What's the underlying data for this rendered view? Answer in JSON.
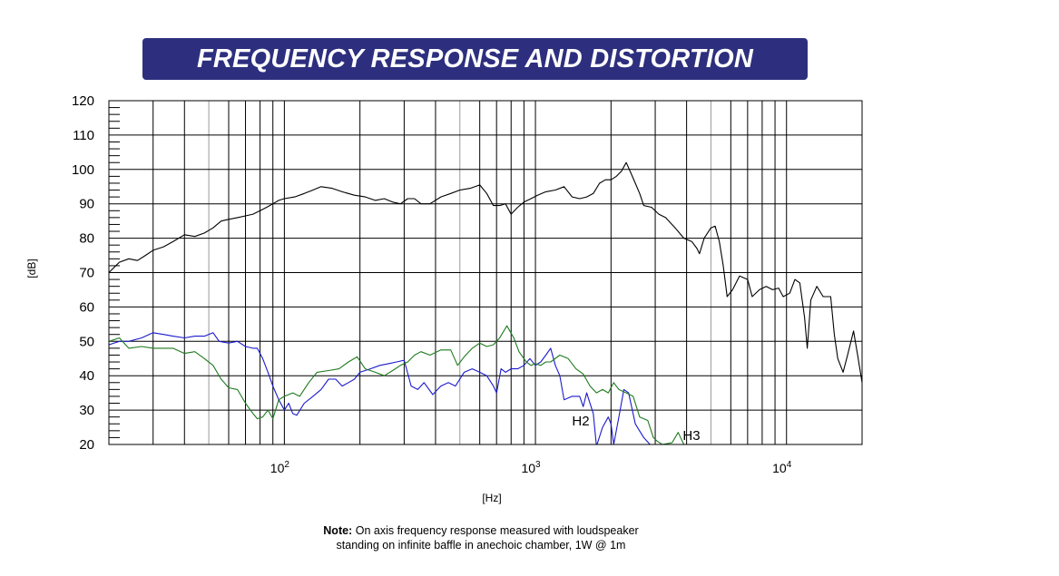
{
  "title": "FREQUENCY RESPONSE AND DISTORTION",
  "note": {
    "label": "Note:",
    "line1": "On axis frequency response measured with loudspeaker",
    "line2": "standing on infinite baffle in anechoic chamber, 1W @ 1m"
  },
  "colors": {
    "banner": "#2d2f7e",
    "response": "#000000",
    "h2": "#1a1acc",
    "h3": "#1f7a1f"
  },
  "chart_data": {
    "type": "line",
    "xscale": "log",
    "xlim": [
      20,
      20000
    ],
    "ylim": [
      20,
      120
    ],
    "xlabel": "[Hz]",
    "ylabel": "[dB]",
    "grid": true,
    "yticks": [
      120,
      110,
      100,
      90,
      80,
      70,
      60,
      50,
      40,
      30,
      20
    ],
    "xticks": [
      {
        "value": 100,
        "base": "10",
        "exp": "2"
      },
      {
        "value": 1000,
        "base": "10",
        "exp": "3"
      },
      {
        "value": 10000,
        "base": "10",
        "exp": "4"
      }
    ],
    "series": [
      {
        "key": "response",
        "color": "#000000",
        "points": [
          [
            20,
            70
          ],
          [
            22,
            73
          ],
          [
            24,
            74
          ],
          [
            26,
            73.5
          ],
          [
            28,
            75
          ],
          [
            30,
            76.5
          ],
          [
            33,
            77.5
          ],
          [
            36,
            79
          ],
          [
            40,
            81
          ],
          [
            44,
            80.5
          ],
          [
            48,
            81.5
          ],
          [
            52,
            83
          ],
          [
            56,
            85
          ],
          [
            60,
            85.5
          ],
          [
            65,
            86
          ],
          [
            70,
            86.5
          ],
          [
            75,
            87
          ],
          [
            80,
            88
          ],
          [
            85,
            89
          ],
          [
            90,
            90
          ],
          [
            95,
            91
          ],
          [
            100,
            91.5
          ],
          [
            110,
            92
          ],
          [
            120,
            93
          ],
          [
            130,
            94
          ],
          [
            140,
            95
          ],
          [
            155,
            94.5
          ],
          [
            170,
            93.5
          ],
          [
            190,
            92.5
          ],
          [
            210,
            92
          ],
          [
            230,
            91
          ],
          [
            250,
            91.5
          ],
          [
            270,
            90.5
          ],
          [
            290,
            90
          ],
          [
            310,
            91.5
          ],
          [
            330,
            91.5
          ],
          [
            350,
            90
          ],
          [
            380,
            90
          ],
          [
            420,
            92
          ],
          [
            460,
            93
          ],
          [
            500,
            94
          ],
          [
            550,
            94.5
          ],
          [
            600,
            95.5
          ],
          [
            640,
            93
          ],
          [
            680,
            89.5
          ],
          [
            720,
            89.5
          ],
          [
            760,
            90
          ],
          [
            800,
            87
          ],
          [
            850,
            89
          ],
          [
            900,
            90.5
          ],
          [
            960,
            91.5
          ],
          [
            1020,
            92.5
          ],
          [
            1100,
            93.5
          ],
          [
            1200,
            94
          ],
          [
            1300,
            95
          ],
          [
            1400,
            92
          ],
          [
            1500,
            91.5
          ],
          [
            1600,
            92
          ],
          [
            1700,
            93
          ],
          [
            1800,
            96
          ],
          [
            1900,
            97
          ],
          [
            2000,
            97
          ],
          [
            2100,
            98
          ],
          [
            2200,
            99.5
          ],
          [
            2300,
            102
          ],
          [
            2400,
            99
          ],
          [
            2500,
            96
          ],
          [
            2600,
            93
          ],
          [
            2700,
            89.5
          ],
          [
            2900,
            89
          ],
          [
            3100,
            87
          ],
          [
            3300,
            86
          ],
          [
            3600,
            83
          ],
          [
            3900,
            80
          ],
          [
            4200,
            79
          ],
          [
            4400,
            77
          ],
          [
            4500,
            75.5
          ],
          [
            4700,
            80
          ],
          [
            5000,
            83
          ],
          [
            5200,
            83.5
          ],
          [
            5400,
            79
          ],
          [
            5600,
            72
          ],
          [
            5800,
            63
          ],
          [
            6100,
            65
          ],
          [
            6500,
            69
          ],
          [
            7000,
            68
          ],
          [
            7300,
            63
          ],
          [
            7800,
            65
          ],
          [
            8300,
            66
          ],
          [
            8800,
            65
          ],
          [
            9300,
            65.5
          ],
          [
            9700,
            63
          ],
          [
            10300,
            64
          ],
          [
            10800,
            68
          ],
          [
            11300,
            67
          ],
          [
            11800,
            57
          ],
          [
            12100,
            48
          ],
          [
            12500,
            62
          ],
          [
            13200,
            66
          ],
          [
            14000,
            63
          ],
          [
            15000,
            63
          ],
          [
            15500,
            52
          ],
          [
            16000,
            45
          ],
          [
            16800,
            41
          ],
          [
            17500,
            46
          ],
          [
            18500,
            53
          ],
          [
            19200,
            46
          ],
          [
            20000,
            38
          ]
        ]
      },
      {
        "key": "h2",
        "color": "#1a1acc",
        "label": "H2",
        "points": [
          [
            20,
            49
          ],
          [
            22,
            50
          ],
          [
            24,
            50
          ],
          [
            27,
            51
          ],
          [
            30,
            52.5
          ],
          [
            33,
            52
          ],
          [
            36,
            51.5
          ],
          [
            40,
            51
          ],
          [
            44,
            51.5
          ],
          [
            48,
            51.5
          ],
          [
            52,
            52.5
          ],
          [
            55,
            50
          ],
          [
            60,
            49.5
          ],
          [
            65,
            50
          ],
          [
            70,
            48.5
          ],
          [
            75,
            48
          ],
          [
            78,
            48
          ],
          [
            82,
            45
          ],
          [
            86,
            41
          ],
          [
            90,
            37
          ],
          [
            95,
            33
          ],
          [
            100,
            30
          ],
          [
            104,
            32
          ],
          [
            108,
            29
          ],
          [
            112,
            28.5
          ],
          [
            120,
            32
          ],
          [
            130,
            34
          ],
          [
            140,
            36
          ],
          [
            150,
            39
          ],
          [
            160,
            39
          ],
          [
            170,
            37
          ],
          [
            180,
            38
          ],
          [
            190,
            39
          ],
          [
            200,
            41
          ],
          [
            220,
            42
          ],
          [
            240,
            43
          ],
          [
            260,
            43.5
          ],
          [
            280,
            44
          ],
          [
            300,
            44.5
          ],
          [
            320,
            37
          ],
          [
            340,
            36
          ],
          [
            360,
            38
          ],
          [
            390,
            34.5
          ],
          [
            420,
            37
          ],
          [
            450,
            38
          ],
          [
            480,
            37
          ],
          [
            520,
            41
          ],
          [
            560,
            42
          ],
          [
            600,
            41
          ],
          [
            640,
            40
          ],
          [
            680,
            37
          ],
          [
            700,
            35
          ],
          [
            730,
            42
          ],
          [
            760,
            41
          ],
          [
            800,
            42
          ],
          [
            850,
            42
          ],
          [
            900,
            43
          ],
          [
            950,
            45
          ],
          [
            1000,
            43
          ],
          [
            1050,
            44
          ],
          [
            1100,
            46
          ],
          [
            1150,
            48
          ],
          [
            1200,
            43
          ],
          [
            1250,
            40
          ],
          [
            1300,
            33
          ],
          [
            1400,
            34
          ],
          [
            1500,
            34
          ],
          [
            1550,
            31
          ],
          [
            1600,
            35
          ],
          [
            1700,
            29
          ],
          [
            1750,
            19.5
          ],
          [
            1850,
            25
          ],
          [
            1950,
            28
          ],
          [
            2000,
            26
          ],
          [
            2050,
            20
          ],
          [
            2150,
            28
          ],
          [
            2250,
            36
          ],
          [
            2350,
            35
          ],
          [
            2500,
            26
          ],
          [
            2700,
            22
          ],
          [
            2900,
            19.5
          ]
        ]
      },
      {
        "key": "h3",
        "color": "#1f7a1f",
        "label": "H3",
        "points": [
          [
            20,
            50
          ],
          [
            22,
            51
          ],
          [
            24,
            48
          ],
          [
            27,
            48.5
          ],
          [
            30,
            48
          ],
          [
            33,
            48
          ],
          [
            36,
            48
          ],
          [
            40,
            46.5
          ],
          [
            44,
            47
          ],
          [
            48,
            45
          ],
          [
            52,
            43
          ],
          [
            56,
            39
          ],
          [
            60,
            36.5
          ],
          [
            65,
            36
          ],
          [
            70,
            32
          ],
          [
            75,
            29
          ],
          [
            78,
            27.5
          ],
          [
            82,
            28
          ],
          [
            86,
            30
          ],
          [
            90,
            27.5
          ],
          [
            95,
            33
          ],
          [
            100,
            34
          ],
          [
            108,
            35
          ],
          [
            115,
            34
          ],
          [
            125,
            38
          ],
          [
            135,
            41
          ],
          [
            150,
            41.5
          ],
          [
            165,
            42
          ],
          [
            180,
            44
          ],
          [
            195,
            45.5
          ],
          [
            210,
            42
          ],
          [
            230,
            41
          ],
          [
            250,
            40
          ],
          [
            270,
            41.5
          ],
          [
            290,
            43
          ],
          [
            310,
            44
          ],
          [
            330,
            46
          ],
          [
            350,
            47
          ],
          [
            380,
            46
          ],
          [
            420,
            47.5
          ],
          [
            460,
            47.5
          ],
          [
            490,
            43
          ],
          [
            520,
            45.5
          ],
          [
            560,
            48
          ],
          [
            600,
            49.5
          ],
          [
            640,
            48.5
          ],
          [
            680,
            49
          ],
          [
            720,
            51
          ],
          [
            770,
            54.5
          ],
          [
            820,
            51
          ],
          [
            860,
            47
          ],
          [
            920,
            44
          ],
          [
            960,
            43
          ],
          [
            1000,
            43.5
          ],
          [
            1050,
            43
          ],
          [
            1100,
            44
          ],
          [
            1150,
            44
          ],
          [
            1250,
            46
          ],
          [
            1350,
            45
          ],
          [
            1450,
            42
          ],
          [
            1550,
            40.5
          ],
          [
            1650,
            37
          ],
          [
            1750,
            35
          ],
          [
            1850,
            36
          ],
          [
            1950,
            35
          ],
          [
            2050,
            38
          ],
          [
            2150,
            36
          ],
          [
            2300,
            35
          ],
          [
            2450,
            34
          ],
          [
            2600,
            28
          ],
          [
            2800,
            27
          ],
          [
            2950,
            22
          ],
          [
            3050,
            21
          ],
          [
            3200,
            20
          ],
          [
            3500,
            20.5
          ],
          [
            3700,
            23.5
          ],
          [
            3900,
            20
          ]
        ]
      }
    ],
    "annotations": [
      {
        "text": "H2",
        "series": "h2"
      },
      {
        "text": "H3",
        "series": "h3"
      }
    ]
  }
}
